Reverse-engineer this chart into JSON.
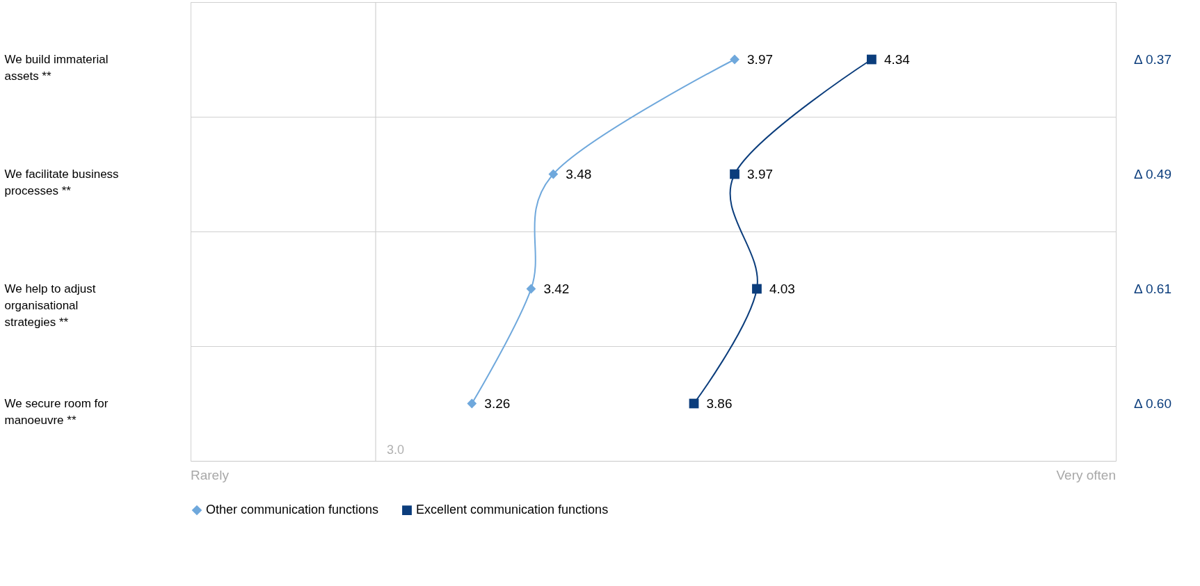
{
  "chart_data": {
    "type": "line",
    "categories": [
      "We build immaterial assets **",
      "We facilitate business processes **",
      "We help to adjust organisational strategies **",
      "We secure room for manoeuvre **"
    ],
    "series": [
      {
        "name": "Other communication functions",
        "color": "#6fa8dc",
        "marker": "diamond",
        "values": [
          3.97,
          3.48,
          3.42,
          3.26
        ]
      },
      {
        "name": "Excellent communication functions",
        "color": "#0b3d7c",
        "marker": "square",
        "values": [
          4.34,
          3.97,
          4.03,
          3.86
        ]
      }
    ],
    "orientation": "horizontal",
    "xlim": [
      2.5,
      5
    ],
    "ref_lines": [
      {
        "axis": "x",
        "value": 3,
        "label": "3.0"
      }
    ],
    "grid": "y",
    "legend": "bottom",
    "data_labels": true,
    "annotations": [
      "Δ 0.37",
      "Δ 0.49",
      "Δ 0.61",
      "Δ 0.60",
      "Rarely",
      "Very often"
    ]
  }
}
